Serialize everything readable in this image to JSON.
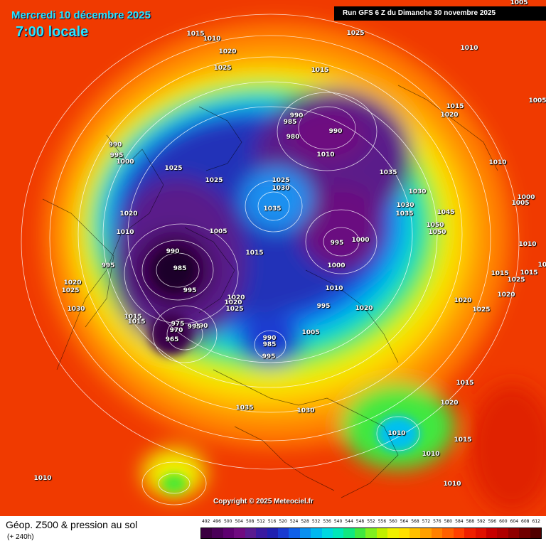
{
  "header": {
    "date": "Mercredi 10 décembre 2025",
    "time": "7:00 locale",
    "run": "Run GFS 6 Z du Dimanche 30 novembre 2025"
  },
  "copyright": "Copyright © 2025 Meteociel.fr",
  "footer": {
    "title": "Géop. Z500 & pression au sol",
    "subtitle": "(+ 240h)"
  },
  "legend": {
    "ticks": [
      "492",
      "496",
      "500",
      "504",
      "508",
      "512",
      "516",
      "520",
      "524",
      "528",
      "532",
      "536",
      "540",
      "544",
      "548",
      "552",
      "556",
      "560",
      "564",
      "568",
      "572",
      "576",
      "580",
      "584",
      "588",
      "592",
      "596",
      "600",
      "604",
      "608",
      "612"
    ],
    "colors": [
      "#3a0040",
      "#4a0058",
      "#5e0070",
      "#700a80",
      "#5a1a90",
      "#3a1aa0",
      "#2020b0",
      "#1a3ad0",
      "#1060e8",
      "#0a90f0",
      "#00b8f0",
      "#00d8e0",
      "#00e8b8",
      "#10e880",
      "#40e840",
      "#80f020",
      "#c0f000",
      "#f0f000",
      "#ffe000",
      "#ffc000",
      "#ffa000",
      "#ff8000",
      "#ff6000",
      "#ff4000",
      "#f02000",
      "#e01000",
      "#c80000",
      "#b00000",
      "#900000",
      "#700000",
      "#500000"
    ]
  },
  "isobar_labels": [
    {
      "t": "1015"
    },
    {
      "t": "1010"
    },
    {
      "t": "1020"
    },
    {
      "t": "1025"
    },
    {
      "t": "1025"
    },
    {
      "t": "1010"
    },
    {
      "t": "1005"
    },
    {
      "t": "1005"
    },
    {
      "t": "1015"
    },
    {
      "t": "990"
    },
    {
      "t": "985"
    },
    {
      "t": "980"
    },
    {
      "t": "990"
    },
    {
      "t": "1010"
    },
    {
      "t": "1015"
    },
    {
      "t": "1020"
    },
    {
      "t": "990"
    },
    {
      "t": "995"
    },
    {
      "t": "1000"
    },
    {
      "t": "1025"
    },
    {
      "t": "1025"
    },
    {
      "t": "1025"
    },
    {
      "t": "1030"
    },
    {
      "t": "1035"
    },
    {
      "t": "1035"
    },
    {
      "t": "1030"
    },
    {
      "t": "1030"
    },
    {
      "t": "1035"
    },
    {
      "t": "1045"
    },
    {
      "t": "1050"
    },
    {
      "t": "1050"
    },
    {
      "t": "1010"
    },
    {
      "t": "1005"
    },
    {
      "t": "1000"
    },
    {
      "t": "1020"
    },
    {
      "t": "1010"
    },
    {
      "t": "1005"
    },
    {
      "t": "1015"
    },
    {
      "t": "995"
    },
    {
      "t": "1000"
    },
    {
      "t": "990"
    },
    {
      "t": "985"
    },
    {
      "t": "995"
    },
    {
      "t": "1000"
    },
    {
      "t": "995"
    },
    {
      "t": "1020"
    },
    {
      "t": "1010"
    },
    {
      "t": "1020"
    },
    {
      "t": "1025"
    },
    {
      "t": "1030"
    },
    {
      "t": "1015"
    },
    {
      "t": "1015"
    },
    {
      "t": "995"
    },
    {
      "t": "1015"
    },
    {
      "t": "1020"
    },
    {
      "t": "1025"
    },
    {
      "t": "975"
    },
    {
      "t": "990"
    },
    {
      "t": "970"
    },
    {
      "t": "965"
    },
    {
      "t": "995"
    },
    {
      "t": "1020"
    },
    {
      "t": "1025"
    },
    {
      "t": "1020"
    },
    {
      "t": "1025"
    },
    {
      "t": "1020"
    },
    {
      "t": "990"
    },
    {
      "t": "985"
    },
    {
      "t": "995"
    },
    {
      "t": "1005"
    },
    {
      "t": "1015"
    },
    {
      "t": "1020"
    },
    {
      "t": "1010"
    },
    {
      "t": "1035"
    },
    {
      "t": "1030"
    },
    {
      "t": "1010"
    },
    {
      "t": "1010"
    },
    {
      "t": "1015"
    },
    {
      "t": "1010"
    },
    {
      "t": "1010"
    },
    {
      "t": "1015"
    },
    {
      "t": "1010"
    }
  ]
}
